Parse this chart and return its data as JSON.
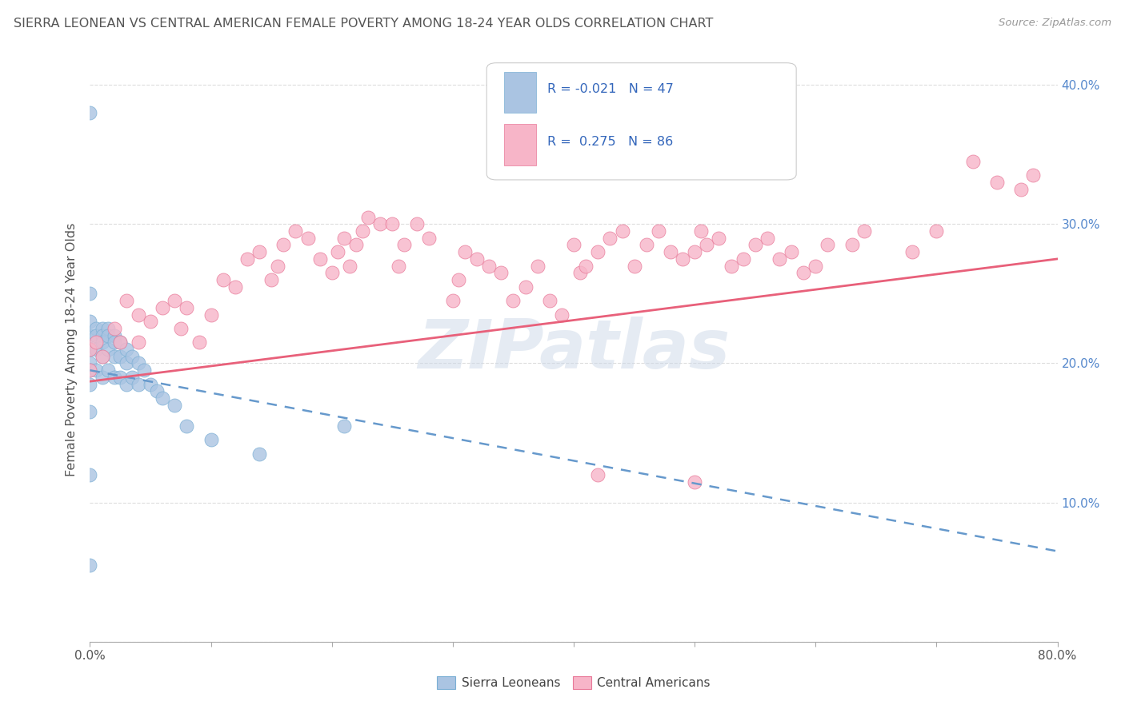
{
  "title": "SIERRA LEONEAN VS CENTRAL AMERICAN FEMALE POVERTY AMONG 18-24 YEAR OLDS CORRELATION CHART",
  "source_text": "Source: ZipAtlas.com",
  "ylabel": "Female Poverty Among 18-24 Year Olds",
  "xlim": [
    0.0,
    0.8
  ],
  "ylim": [
    0.0,
    0.42
  ],
  "xtick_vals": [
    0.0,
    0.1,
    0.2,
    0.3,
    0.4,
    0.5,
    0.6,
    0.7,
    0.8
  ],
  "xticklabels": [
    "0.0%",
    "",
    "",
    "",
    "",
    "",
    "",
    "",
    "80.0%"
  ],
  "ytick_vals": [
    0.0,
    0.1,
    0.2,
    0.3,
    0.4
  ],
  "yticklabels_right": [
    "",
    "10.0%",
    "20.0%",
    "30.0%",
    "40.0%"
  ],
  "legend_text1": "R = -0.021   N = 47",
  "legend_text2": "R =  0.275   N = 86",
  "sierra_color": "#aac4e2",
  "sierra_edge": "#7bafd4",
  "central_color": "#f7b5c8",
  "central_edge": "#e87898",
  "sierra_line_color": "#6699cc",
  "central_line_color": "#e8607a",
  "watermark": "ZIPatlas",
  "legend_label1": "Sierra Leoneans",
  "legend_label2": "Central Americans",
  "background_color": "#ffffff",
  "grid_color": "#dddddd",
  "right_tick_color": "#5588cc",
  "title_color": "#555555",
  "axis_label_color": "#555555"
}
